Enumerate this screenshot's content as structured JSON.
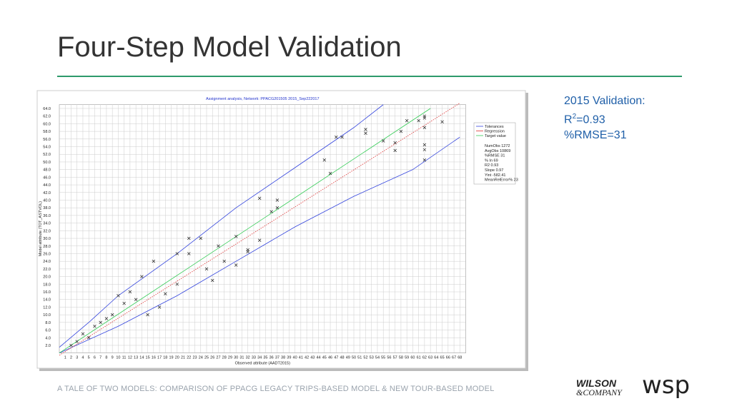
{
  "header": {
    "title": "Four-Step Model Validation"
  },
  "side": {
    "line1": "2015 Validation:",
    "r": "R",
    "sup": "2",
    "r_value": "=0.93",
    "line3": "%RMSE=31"
  },
  "footer": "A TALE OF TWO MODELS: COMPARISON OF PPACG LEGACY TRIPS-BASED MODEL & NEW TOUR-BASED MODEL",
  "logos": {
    "wilson": "WILSON",
    "company": "&COMPANY",
    "wsp": "wsp"
  },
  "chart_data": {
    "type": "scatter",
    "title": "Assignment analysis, Network: PPACG201505 2015_Sep222017",
    "x_label": "Observed attribute (AADT2015)",
    "y_label": "Model attribute (TOT_ASTVOL)",
    "xlim": [
      0,
      69
    ],
    "ylim": [
      0,
      65
    ],
    "grid": true,
    "xticks": [
      1,
      2,
      3,
      4,
      5,
      6,
      7,
      8,
      9,
      10,
      11,
      12,
      13,
      14,
      15,
      16,
      17,
      18,
      19,
      20,
      21,
      22,
      23,
      24,
      25,
      26,
      27,
      28,
      29,
      30,
      31,
      32,
      33,
      34,
      35,
      36,
      37,
      38,
      39,
      40,
      41,
      42,
      43,
      44,
      45,
      46,
      47,
      48,
      49,
      50,
      51,
      52,
      53,
      54,
      55,
      56,
      57,
      58,
      59,
      60,
      61,
      62,
      63,
      64,
      65,
      66,
      67,
      68
    ],
    "yticks": [
      {
        "value": 2,
        "label": "2.0"
      },
      {
        "value": 4,
        "label": "4.0"
      },
      {
        "value": 6,
        "label": "6.0"
      },
      {
        "value": 8,
        "label": "8.0"
      },
      {
        "value": 10,
        "label": "10.0"
      },
      {
        "value": 12,
        "label": "12.0"
      },
      {
        "value": 14,
        "label": "14.0"
      },
      {
        "value": 16,
        "label": "16.0"
      },
      {
        "value": 18,
        "label": "18.0"
      },
      {
        "value": 20,
        "label": "20.0"
      },
      {
        "value": 22,
        "label": "22.0"
      },
      {
        "value": 24,
        "label": "24.0"
      },
      {
        "value": 26,
        "label": "26.0"
      },
      {
        "value": 28,
        "label": "28.0"
      },
      {
        "value": 30,
        "label": "30.0"
      },
      {
        "value": 32,
        "label": "32.0"
      },
      {
        "value": 34,
        "label": "34.0"
      },
      {
        "value": 36,
        "label": "36.0"
      },
      {
        "value": 38,
        "label": "38.0"
      },
      {
        "value": 40,
        "label": "40.0"
      },
      {
        "value": 42,
        "label": "42.0"
      },
      {
        "value": 44,
        "label": "44.0"
      },
      {
        "value": 46,
        "label": "46.0"
      },
      {
        "value": 48,
        "label": "48.0"
      },
      {
        "value": 50,
        "label": "50.0"
      },
      {
        "value": 52,
        "label": "52.0"
      },
      {
        "value": 54,
        "label": "54.0"
      },
      {
        "value": 56,
        "label": "56.0"
      },
      {
        "value": 58,
        "label": "58.0"
      },
      {
        "value": 60,
        "label": "60.0"
      },
      {
        "value": 62,
        "label": "62.0"
      },
      {
        "value": 64,
        "label": "64.0"
      }
    ],
    "lines": [
      {
        "name": "Tolerances",
        "color": "#3344dd",
        "x": [
          0,
          5,
          10,
          20,
          30,
          40,
          50,
          55
        ],
        "values": [
          1.5,
          8,
          15,
          26,
          38,
          48.5,
          59,
          65
        ]
      },
      {
        "name": "Tolerances",
        "color": "#3344dd",
        "x": [
          0,
          10,
          20,
          30,
          40,
          50,
          60,
          68
        ],
        "values": [
          0,
          7,
          15,
          24,
          33,
          41,
          48,
          56.5
        ]
      },
      {
        "name": "Regression",
        "color": "#dd3333",
        "x": [
          0,
          68
        ],
        "values": [
          -0.6,
          65.4
        ]
      },
      {
        "name": "Target value",
        "color": "#33cc55",
        "x": [
          0,
          63
        ],
        "values": [
          0,
          64
        ]
      }
    ],
    "points": {
      "color": "#222",
      "x": [
        45,
        46,
        47,
        48,
        52,
        52,
        55,
        57,
        57,
        58,
        59,
        61,
        62,
        62,
        62,
        62,
        62,
        62,
        65,
        34,
        36,
        37,
        37,
        32,
        32,
        22,
        24,
        27,
        30,
        34,
        12,
        18,
        20,
        25,
        14,
        16,
        10,
        8,
        6,
        4,
        3,
        2,
        5,
        20,
        22,
        15,
        28,
        26,
        30,
        17,
        9,
        11,
        13,
        7
      ],
      "values": [
        50.5,
        47,
        56.5,
        56.5,
        58.5,
        57.5,
        55.5,
        55,
        53,
        58,
        60.8,
        60.8,
        62,
        61.5,
        59,
        54.5,
        53.2,
        50.5,
        60.5,
        40.5,
        37,
        40,
        38,
        26.5,
        27,
        30,
        30,
        28,
        30.5,
        29.5,
        16,
        15.5,
        18,
        22,
        20,
        24,
        15,
        9,
        7,
        5,
        3,
        2,
        4,
        26,
        26,
        10,
        24,
        19,
        23,
        12,
        10,
        13,
        14,
        8
      ]
    },
    "legend": [
      "Tolerances",
      "Regression",
      "Target value"
    ],
    "stats": [
      "NumObs 1272",
      "AvgObs 10869",
      "%RMSE 31",
      "% In 69",
      "R2 0.93",
      "Slope 0.97",
      "Yint -582.41",
      "MeanRelError% 23"
    ]
  }
}
